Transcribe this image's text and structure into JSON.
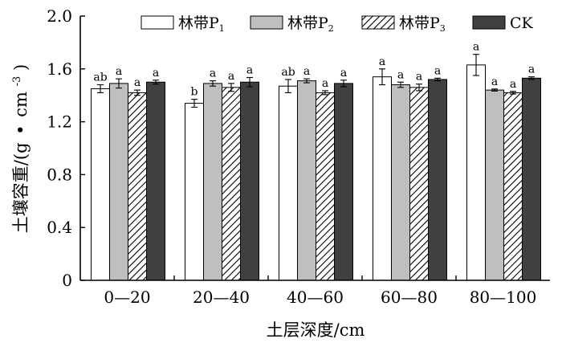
{
  "chart_data": {
    "type": "bar",
    "categories": [
      "0—20",
      "20—40",
      "40—60",
      "60—80",
      "80—100"
    ],
    "series": [
      {
        "name": "林带P1",
        "label_main": "林带P",
        "label_sub": "1",
        "fill": "#ffffff",
        "pattern": "none",
        "values": [
          1.45,
          1.34,
          1.47,
          1.54,
          1.63
        ],
        "errors": [
          0.03,
          0.03,
          0.05,
          0.06,
          0.08
        ],
        "letters": [
          "ab",
          "b",
          "ab",
          "a",
          "a"
        ]
      },
      {
        "name": "林带P2",
        "label_main": "林带P",
        "label_sub": "2",
        "fill": "#bfbfbf",
        "pattern": "none",
        "values": [
          1.49,
          1.49,
          1.51,
          1.48,
          1.44
        ],
        "errors": [
          0.035,
          0.02,
          0.015,
          0.02,
          0.008
        ],
        "letters": [
          "a",
          "a",
          "a",
          "a",
          "a"
        ]
      },
      {
        "name": "林带P3",
        "label_main": "林带P",
        "label_sub": "3",
        "fill": "#ffffff",
        "pattern": "hatch",
        "values": [
          1.42,
          1.46,
          1.42,
          1.46,
          1.42
        ],
        "errors": [
          0.02,
          0.03,
          0.015,
          0.025,
          0.01
        ],
        "letters": [
          "a",
          "a",
          "a",
          "a",
          "a"
        ]
      },
      {
        "name": "CK",
        "label_main": "CK",
        "label_sub": "",
        "fill": "#404040",
        "pattern": "none",
        "values": [
          1.5,
          1.5,
          1.49,
          1.52,
          1.53
        ],
        "errors": [
          0.015,
          0.035,
          0.025,
          0.01,
          0.01
        ],
        "letters": [
          "a",
          "a",
          "a",
          "a",
          "a"
        ]
      }
    ],
    "xlabel": "土层深度/cm",
    "ylabel_main": "土壤容重/(g",
    "ylabel_dot": "•",
    "ylabel_mid": "cm",
    "ylabel_sup": "-3",
    "ylabel_end": ")",
    "ylim": [
      0,
      2.0
    ],
    "yticks": [
      "0",
      "0.4",
      "0.8",
      "1.2",
      "1.6",
      "2.0"
    ],
    "ytick_values": [
      0,
      0.4,
      0.8,
      1.2,
      1.6,
      2.0
    ],
    "grid": false,
    "legend_position": "top"
  }
}
